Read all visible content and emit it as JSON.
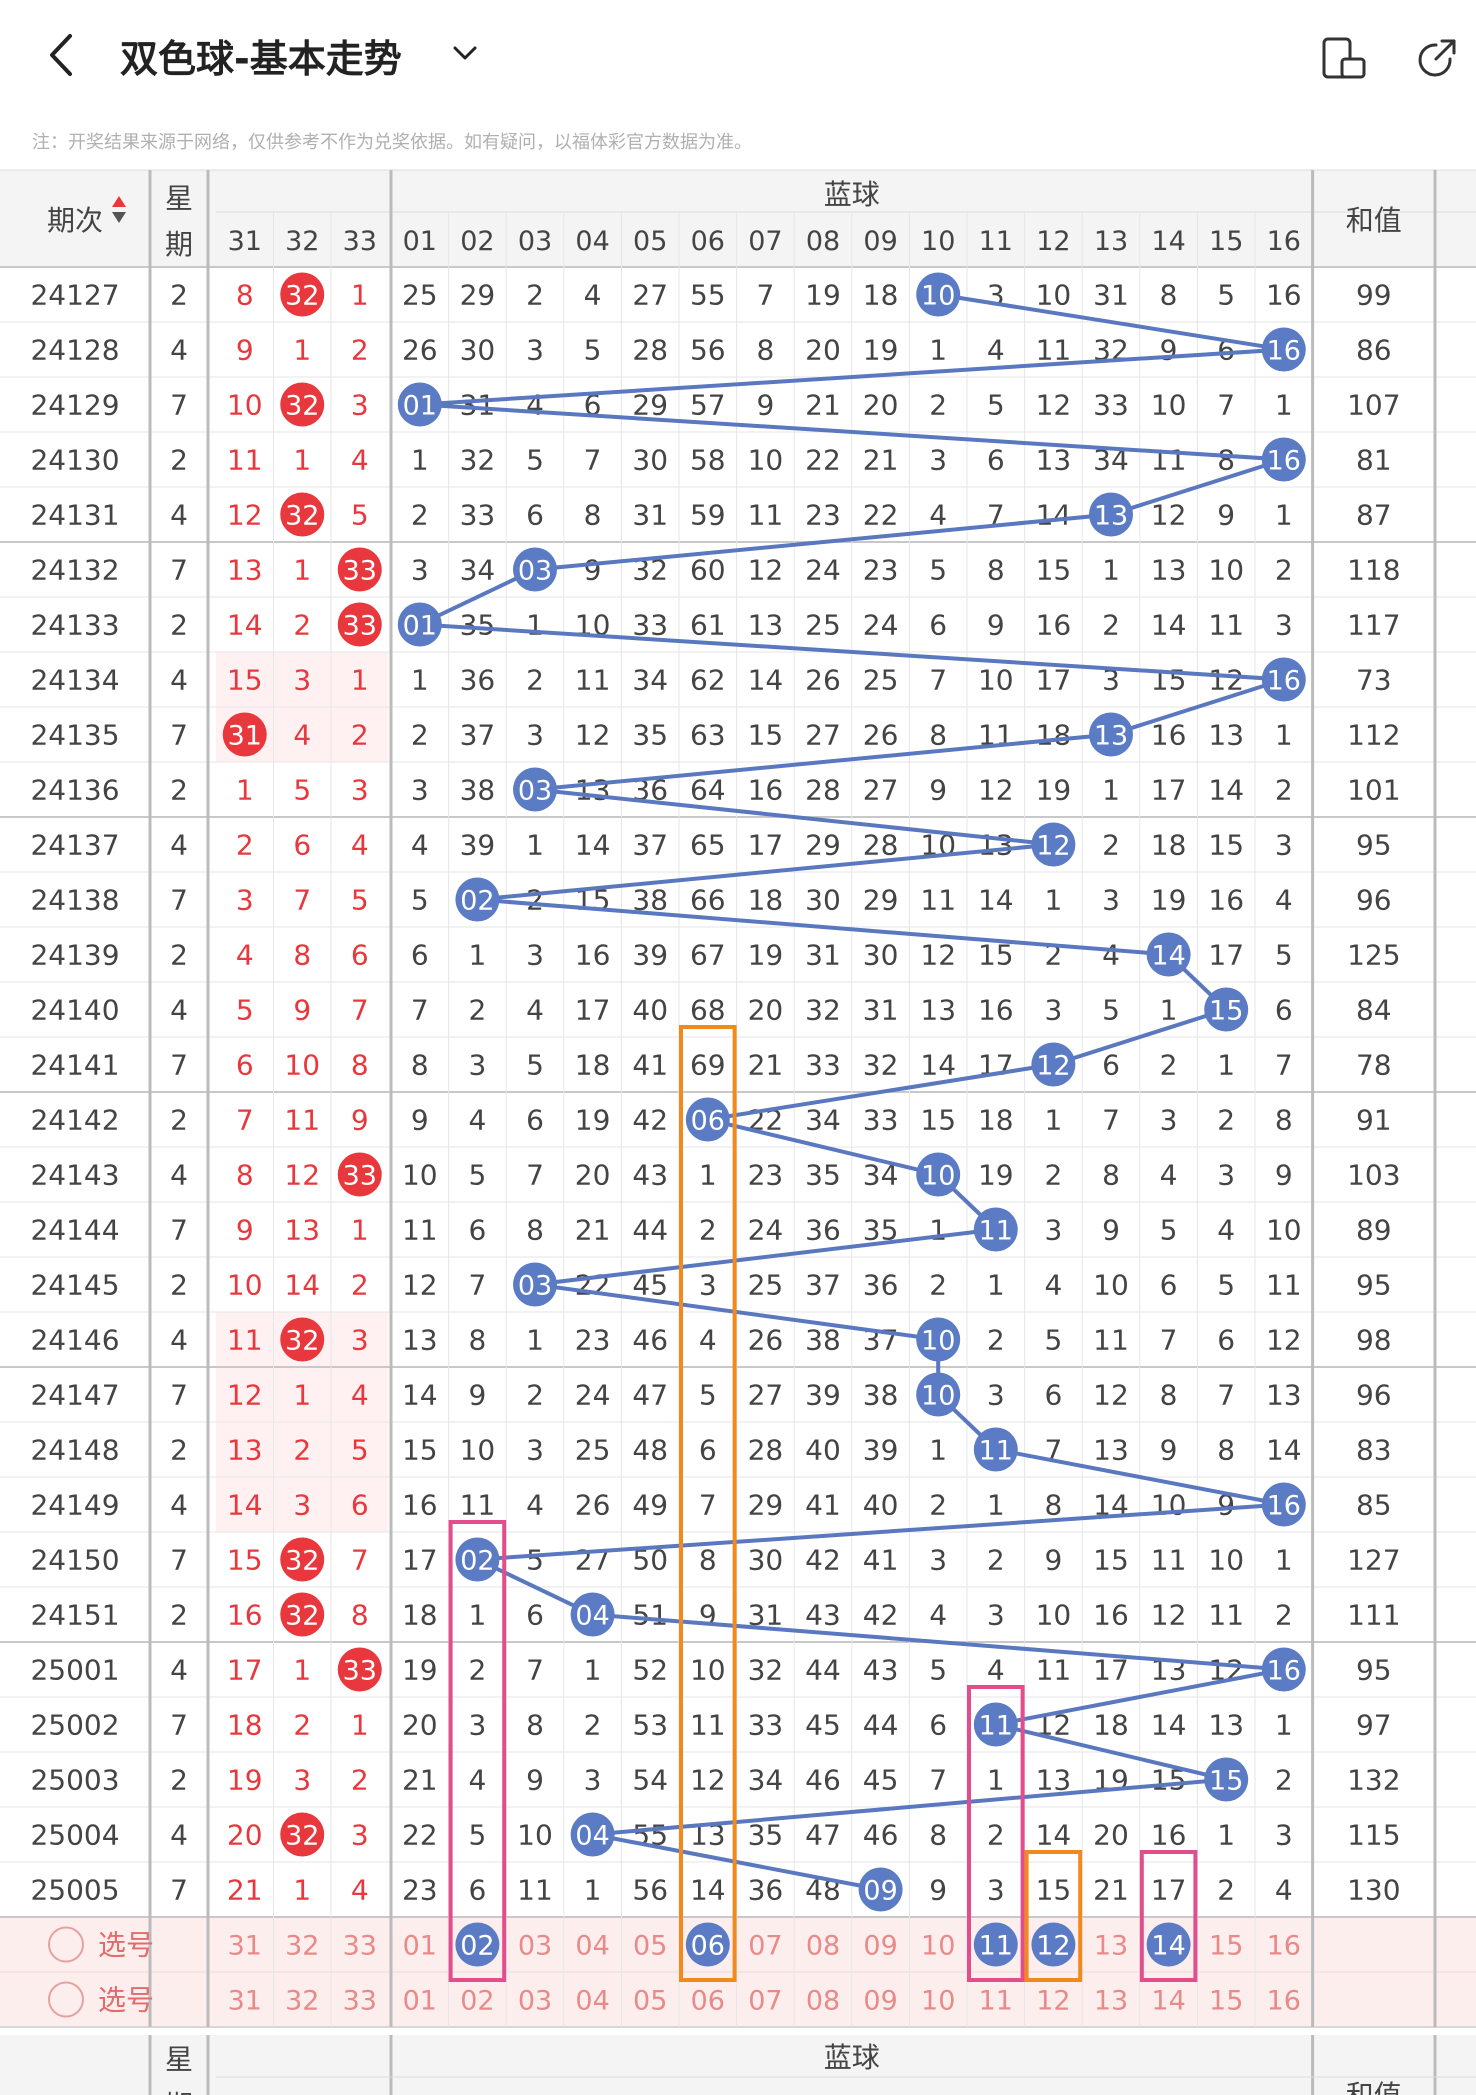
{
  "header": {
    "title": "双色球-基本走势",
    "note": "注：开奖结果来源于网络，仅供参考不作为兑奖依据。如有疑问，以福体彩官方数据为准。"
  },
  "table": {
    "col_period": "期次",
    "col_week": "星期",
    "col_blue": "蓝球",
    "col_sum": "和值",
    "red_cols": [
      "31",
      "32",
      "33"
    ],
    "blue_cols": [
      "01",
      "02",
      "03",
      "04",
      "05",
      "06",
      "07",
      "08",
      "09",
      "10",
      "11",
      "12",
      "13",
      "14",
      "15",
      "16"
    ],
    "select_label": "选号",
    "rows": [
      {
        "period": "24127",
        "week": "2",
        "red": [
          "8",
          "32",
          "1"
        ],
        "blue": [
          "25",
          "29",
          "2",
          "4",
          "27",
          "55",
          "7",
          "19",
          "18",
          "10",
          "3",
          "10",
          "31",
          "8",
          "5",
          "16"
        ],
        "sum": "99",
        "hit_red": [
          1
        ],
        "hit_blue": 10
      },
      {
        "period": "24128",
        "week": "4",
        "red": [
          "9",
          "1",
          "2"
        ],
        "blue": [
          "26",
          "30",
          "3",
          "5",
          "28",
          "56",
          "8",
          "20",
          "19",
          "1",
          "4",
          "11",
          "32",
          "9",
          "6",
          "16"
        ],
        "sum": "86",
        "hit_red": [],
        "hit_blue": 16
      },
      {
        "period": "24129",
        "week": "7",
        "red": [
          "10",
          "32",
          "3"
        ],
        "blue": [
          "01",
          "31",
          "4",
          "6",
          "29",
          "57",
          "9",
          "21",
          "20",
          "2",
          "5",
          "12",
          "33",
          "10",
          "7",
          "1"
        ],
        "sum": "107",
        "hit_red": [
          1
        ],
        "hit_blue": 1
      },
      {
        "period": "24130",
        "week": "2",
        "red": [
          "11",
          "1",
          "4"
        ],
        "blue": [
          "1",
          "32",
          "5",
          "7",
          "30",
          "58",
          "10",
          "22",
          "21",
          "3",
          "6",
          "13",
          "34",
          "11",
          "8",
          "16"
        ],
        "sum": "81",
        "hit_red": [],
        "hit_blue": 16
      },
      {
        "period": "24131",
        "week": "4",
        "red": [
          "12",
          "32",
          "5"
        ],
        "blue": [
          "2",
          "33",
          "6",
          "8",
          "31",
          "59",
          "11",
          "23",
          "22",
          "4",
          "7",
          "14",
          "13",
          "12",
          "9",
          "1"
        ],
        "sum": "87",
        "hit_red": [
          1
        ],
        "hit_blue": 13
      },
      {
        "period": "24132",
        "week": "7",
        "red": [
          "13",
          "1",
          "33"
        ],
        "blue": [
          "3",
          "34",
          "03",
          "9",
          "32",
          "60",
          "12",
          "24",
          "23",
          "5",
          "8",
          "15",
          "1",
          "13",
          "10",
          "2"
        ],
        "sum": "118",
        "hit_red": [
          2
        ],
        "hit_blue": 3
      },
      {
        "period": "24133",
        "week": "2",
        "red": [
          "14",
          "2",
          "33"
        ],
        "blue": [
          "01",
          "35",
          "1",
          "10",
          "33",
          "61",
          "13",
          "25",
          "24",
          "6",
          "9",
          "16",
          "2",
          "14",
          "11",
          "3"
        ],
        "sum": "117",
        "hit_red": [
          2
        ],
        "hit_blue": 1
      },
      {
        "period": "24134",
        "week": "4",
        "red": [
          "15",
          "3",
          "1"
        ],
        "blue": [
          "1",
          "36",
          "2",
          "11",
          "34",
          "62",
          "14",
          "26",
          "25",
          "7",
          "10",
          "17",
          "3",
          "15",
          "12",
          "16"
        ],
        "sum": "73",
        "hit_red": [],
        "hit_blue": 16
      },
      {
        "period": "24135",
        "week": "7",
        "red": [
          "31",
          "4",
          "2"
        ],
        "blue": [
          "2",
          "37",
          "3",
          "12",
          "35",
          "63",
          "15",
          "27",
          "26",
          "8",
          "11",
          "18",
          "13",
          "16",
          "13",
          "1"
        ],
        "sum": "112",
        "hit_red": [
          0
        ],
        "hit_blue": 13
      },
      {
        "period": "24136",
        "week": "2",
        "red": [
          "1",
          "5",
          "3"
        ],
        "blue": [
          "3",
          "38",
          "03",
          "13",
          "36",
          "64",
          "16",
          "28",
          "27",
          "9",
          "12",
          "19",
          "1",
          "17",
          "14",
          "2"
        ],
        "sum": "101",
        "hit_red": [],
        "hit_blue": 3
      },
      {
        "period": "24137",
        "week": "4",
        "red": [
          "2",
          "6",
          "4"
        ],
        "blue": [
          "4",
          "39",
          "1",
          "14",
          "37",
          "65",
          "17",
          "29",
          "28",
          "10",
          "13",
          "12",
          "2",
          "18",
          "15",
          "3"
        ],
        "sum": "95",
        "hit_red": [],
        "hit_blue": 12
      },
      {
        "period": "24138",
        "week": "7",
        "red": [
          "3",
          "7",
          "5"
        ],
        "blue": [
          "5",
          "02",
          "2",
          "15",
          "38",
          "66",
          "18",
          "30",
          "29",
          "11",
          "14",
          "1",
          "3",
          "19",
          "16",
          "4"
        ],
        "sum": "96",
        "hit_red": [],
        "hit_blue": 2
      },
      {
        "period": "24139",
        "week": "2",
        "red": [
          "4",
          "8",
          "6"
        ],
        "blue": [
          "6",
          "1",
          "3",
          "16",
          "39",
          "67",
          "19",
          "31",
          "30",
          "12",
          "15",
          "2",
          "4",
          "14",
          "17",
          "5"
        ],
        "sum": "125",
        "hit_red": [],
        "hit_blue": 14
      },
      {
        "period": "24140",
        "week": "4",
        "red": [
          "5",
          "9",
          "7"
        ],
        "blue": [
          "7",
          "2",
          "4",
          "17",
          "40",
          "68",
          "20",
          "32",
          "31",
          "13",
          "16",
          "3",
          "5",
          "1",
          "15",
          "6"
        ],
        "sum": "84",
        "hit_red": [],
        "hit_blue": 15
      },
      {
        "period": "24141",
        "week": "7",
        "red": [
          "6",
          "10",
          "8"
        ],
        "blue": [
          "8",
          "3",
          "5",
          "18",
          "41",
          "69",
          "21",
          "33",
          "32",
          "14",
          "17",
          "12",
          "6",
          "2",
          "1",
          "7"
        ],
        "sum": "78",
        "hit_red": [],
        "hit_blue": 12
      },
      {
        "period": "24142",
        "week": "2",
        "red": [
          "7",
          "11",
          "9"
        ],
        "blue": [
          "9",
          "4",
          "6",
          "19",
          "42",
          "06",
          "22",
          "34",
          "33",
          "15",
          "18",
          "1",
          "7",
          "3",
          "2",
          "8"
        ],
        "sum": "91",
        "hit_red": [],
        "hit_blue": 6
      },
      {
        "period": "24143",
        "week": "4",
        "red": [
          "8",
          "12",
          "33"
        ],
        "blue": [
          "10",
          "5",
          "7",
          "20",
          "43",
          "1",
          "23",
          "35",
          "34",
          "10",
          "19",
          "2",
          "8",
          "4",
          "3",
          "9"
        ],
        "sum": "103",
        "hit_red": [
          2
        ],
        "hit_blue": 10
      },
      {
        "period": "24144",
        "week": "7",
        "red": [
          "9",
          "13",
          "1"
        ],
        "blue": [
          "11",
          "6",
          "8",
          "21",
          "44",
          "2",
          "24",
          "36",
          "35",
          "1",
          "11",
          "3",
          "9",
          "5",
          "4",
          "10"
        ],
        "sum": "89",
        "hit_red": [],
        "hit_blue": 11
      },
      {
        "period": "24145",
        "week": "2",
        "red": [
          "10",
          "14",
          "2"
        ],
        "blue": [
          "12",
          "7",
          "03",
          "22",
          "45",
          "3",
          "25",
          "37",
          "36",
          "2",
          "1",
          "4",
          "10",
          "6",
          "5",
          "11"
        ],
        "sum": "95",
        "hit_red": [],
        "hit_blue": 3
      },
      {
        "period": "24146",
        "week": "4",
        "red": [
          "11",
          "32",
          "3"
        ],
        "blue": [
          "13",
          "8",
          "1",
          "23",
          "46",
          "4",
          "26",
          "38",
          "37",
          "10",
          "2",
          "5",
          "11",
          "7",
          "6",
          "12"
        ],
        "sum": "98",
        "hit_red": [
          1
        ],
        "hit_blue": 10
      },
      {
        "period": "24147",
        "week": "7",
        "red": [
          "12",
          "1",
          "4"
        ],
        "blue": [
          "14",
          "9",
          "2",
          "24",
          "47",
          "5",
          "27",
          "39",
          "38",
          "10",
          "3",
          "6",
          "12",
          "8",
          "7",
          "13"
        ],
        "sum": "96",
        "hit_red": [],
        "hit_blue": 10
      },
      {
        "period": "24148",
        "week": "2",
        "red": [
          "13",
          "2",
          "5"
        ],
        "blue": [
          "15",
          "10",
          "3",
          "25",
          "48",
          "6",
          "28",
          "40",
          "39",
          "1",
          "11",
          "7",
          "13",
          "9",
          "8",
          "14"
        ],
        "sum": "83",
        "hit_red": [],
        "hit_blue": 11
      },
      {
        "period": "24149",
        "week": "4",
        "red": [
          "14",
          "3",
          "6"
        ],
        "blue": [
          "16",
          "11",
          "4",
          "26",
          "49",
          "7",
          "29",
          "41",
          "40",
          "2",
          "1",
          "8",
          "14",
          "10",
          "9",
          "16"
        ],
        "sum": "85",
        "hit_red": [],
        "hit_blue": 16
      },
      {
        "period": "24150",
        "week": "7",
        "red": [
          "15",
          "32",
          "7"
        ],
        "blue": [
          "17",
          "02",
          "5",
          "27",
          "50",
          "8",
          "30",
          "42",
          "41",
          "3",
          "2",
          "9",
          "15",
          "11",
          "10",
          "1"
        ],
        "sum": "127",
        "hit_red": [
          1
        ],
        "hit_blue": 2
      },
      {
        "period": "24151",
        "week": "2",
        "red": [
          "16",
          "32",
          "8"
        ],
        "blue": [
          "18",
          "1",
          "6",
          "04",
          "51",
          "9",
          "31",
          "43",
          "42",
          "4",
          "3",
          "10",
          "16",
          "12",
          "11",
          "2"
        ],
        "sum": "111",
        "hit_red": [
          1
        ],
        "hit_blue": 4
      },
      {
        "period": "25001",
        "week": "4",
        "red": [
          "17",
          "1",
          "33"
        ],
        "blue": [
          "19",
          "2",
          "7",
          "1",
          "52",
          "10",
          "32",
          "44",
          "43",
          "5",
          "4",
          "11",
          "17",
          "13",
          "12",
          "16"
        ],
        "sum": "95",
        "hit_red": [
          2
        ],
        "hit_blue": 16
      },
      {
        "period": "25002",
        "week": "7",
        "red": [
          "18",
          "2",
          "1"
        ],
        "blue": [
          "20",
          "3",
          "8",
          "2",
          "53",
          "11",
          "33",
          "45",
          "44",
          "6",
          "11",
          "12",
          "18",
          "14",
          "13",
          "1"
        ],
        "sum": "97",
        "hit_red": [],
        "hit_blue": 11
      },
      {
        "period": "25003",
        "week": "2",
        "red": [
          "19",
          "3",
          "2"
        ],
        "blue": [
          "21",
          "4",
          "9",
          "3",
          "54",
          "12",
          "34",
          "46",
          "45",
          "7",
          "1",
          "13",
          "19",
          "15",
          "15",
          "2"
        ],
        "sum": "132",
        "hit_red": [],
        "hit_blue": 15
      },
      {
        "period": "25004",
        "week": "4",
        "red": [
          "20",
          "32",
          "3"
        ],
        "blue": [
          "22",
          "5",
          "10",
          "04",
          "55",
          "13",
          "35",
          "47",
          "46",
          "8",
          "2",
          "14",
          "20",
          "16",
          "1",
          "3"
        ],
        "sum": "115",
        "hit_red": [
          1
        ],
        "hit_blue": 4
      },
      {
        "period": "25005",
        "week": "7",
        "red": [
          "21",
          "1",
          "4"
        ],
        "blue": [
          "23",
          "6",
          "11",
          "1",
          "56",
          "14",
          "36",
          "48",
          "09",
          "9",
          "3",
          "15",
          "21",
          "17",
          "2",
          "4"
        ],
        "sum": "130",
        "hit_red": [],
        "hit_blue": 9
      }
    ],
    "selected_blue": [
      2,
      6,
      11,
      12,
      14
    ]
  },
  "colors": {
    "red": "#e8383d",
    "blue_ball": "#5b7cc4",
    "line": "#5a78c0",
    "orange": "#f08a1f",
    "pink": "#e24d8c",
    "pink_bg": "#fdeeee"
  }
}
